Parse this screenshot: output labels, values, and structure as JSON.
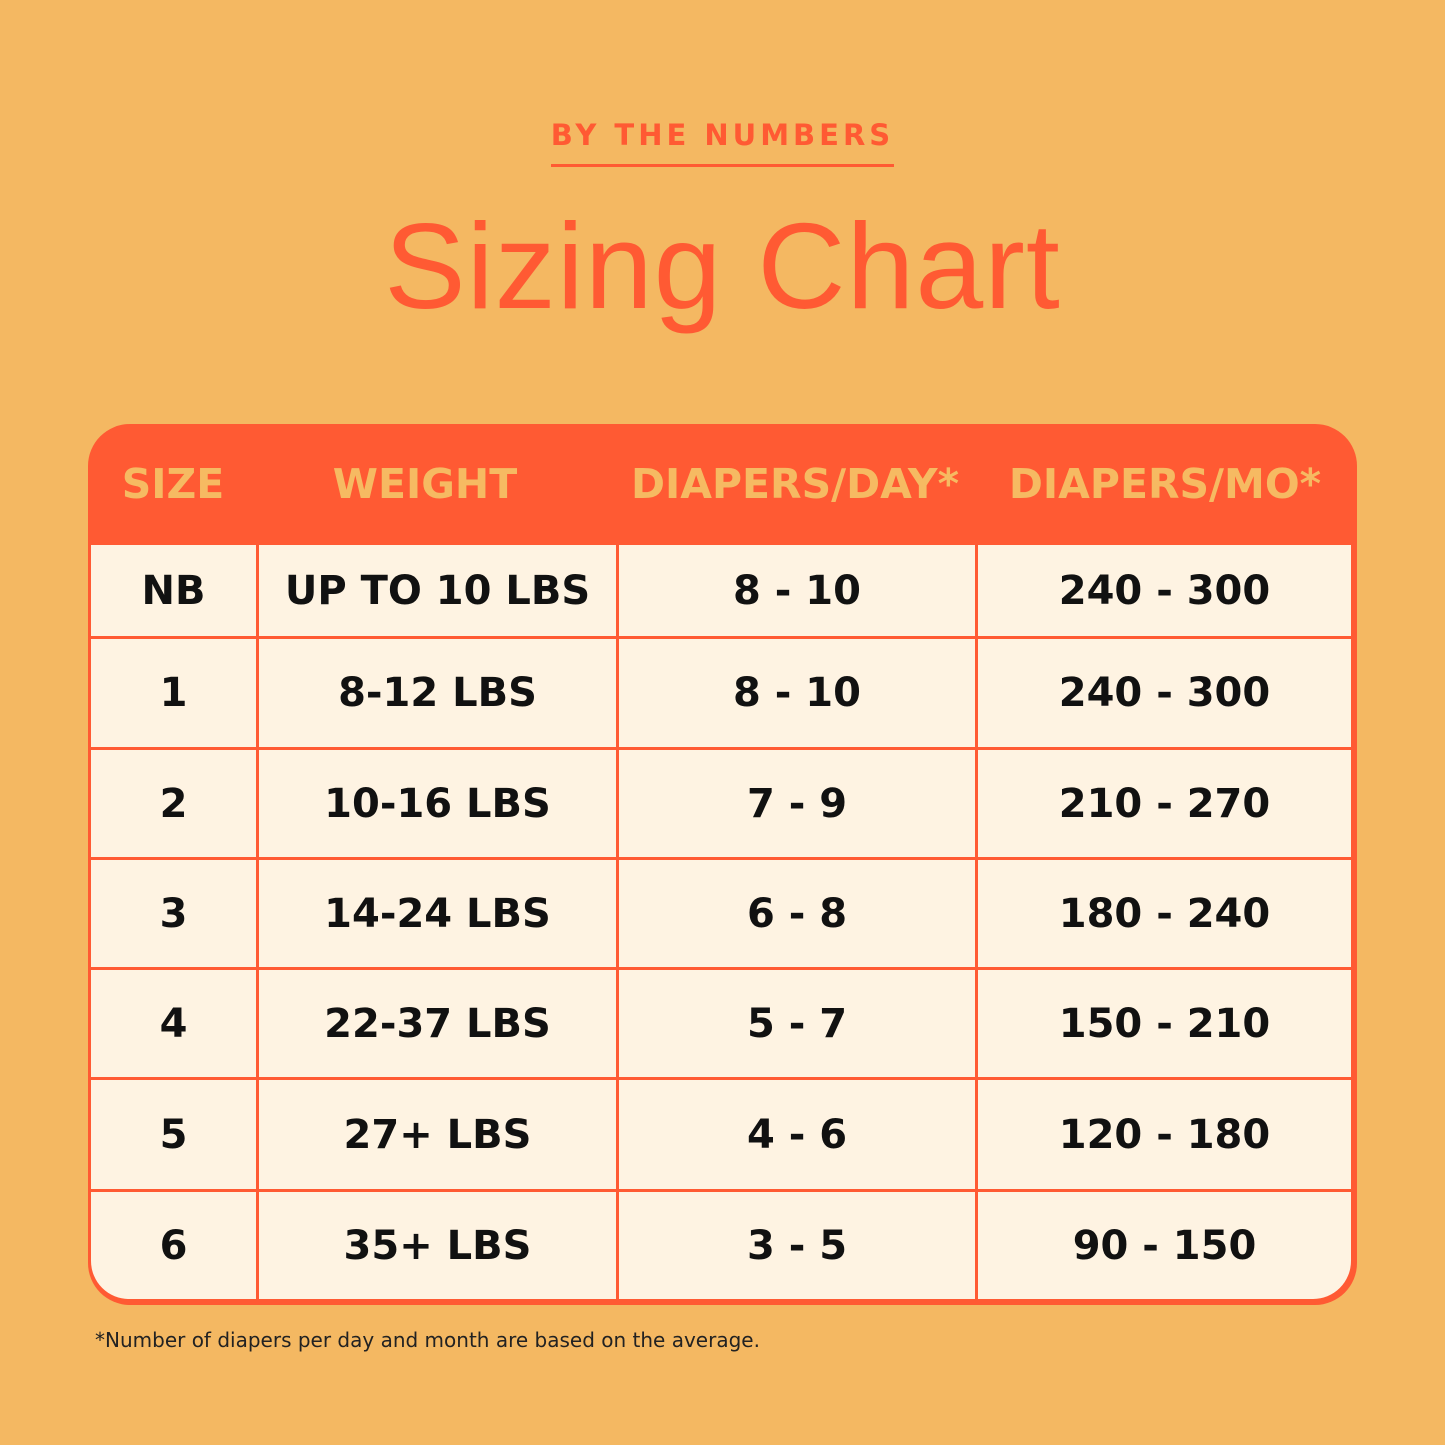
{
  "eyebrow": "BY THE NUMBERS",
  "title": "Sizing Chart",
  "colors": {
    "background": "#F4B862",
    "accent": "#FF5A33",
    "cell": "#FEF3E2",
    "header_text": "#F6BA62"
  },
  "table": {
    "headers": [
      "SIZE",
      "WEIGHT",
      "DIAPERS/DAY*",
      "DIAPERS/MO*"
    ],
    "rows": [
      [
        "NB",
        "UP TO 10 LBS",
        "8 - 10",
        "240 - 300"
      ],
      [
        "1",
        "8-12 LBS",
        "8 - 10",
        "240 - 300"
      ],
      [
        "2",
        "10-16 LBS",
        "7 - 9",
        "210 - 270"
      ],
      [
        "3",
        "14-24 LBS",
        "6 - 8",
        "180 - 240"
      ],
      [
        "4",
        "22-37 LBS",
        "5 - 7",
        "150 - 210"
      ],
      [
        "5",
        "27+ LBS",
        "4 - 6",
        "120 - 180"
      ],
      [
        "6",
        "35+ LBS",
        "3 - 5",
        "90 - 150"
      ]
    ]
  },
  "footnote": "*Number of diapers per day and month are based on the average."
}
